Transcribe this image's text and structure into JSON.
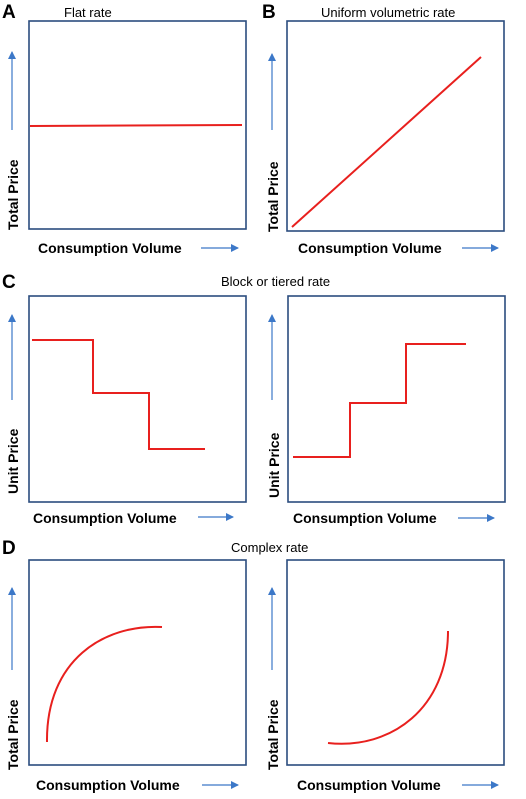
{
  "colors": {
    "frame": "#2b4d7e",
    "curve": "#e8201e",
    "arrow": "#3c78c8"
  },
  "panels": {
    "a": {
      "letter": "A",
      "title": "Flat rate",
      "ylabel": "Total Price",
      "xlabel": "Consumption Volume",
      "shape": "flat"
    },
    "b": {
      "letter": "B",
      "title": "Uniform volumetric rate",
      "ylabel": "Total Price",
      "xlabel": "Consumption Volume",
      "shape": "linear increasing"
    },
    "c": {
      "letter": "C",
      "title": "Block or tiered rate",
      "left": {
        "ylabel": "Unit Price",
        "xlabel": "Consumption Volume",
        "shape": "decreasing steps"
      },
      "right": {
        "ylabel": "Unit Price",
        "xlabel": "Consumption Volume",
        "shape": "increasing steps"
      }
    },
    "d": {
      "letter": "D",
      "title": "Complex rate",
      "left": {
        "ylabel": "Total Price",
        "xlabel": "Consumption Volume",
        "shape": "concave increasing"
      },
      "right": {
        "ylabel": "Total Price",
        "xlabel": "Consumption Volume",
        "shape": "convex increasing"
      }
    }
  }
}
